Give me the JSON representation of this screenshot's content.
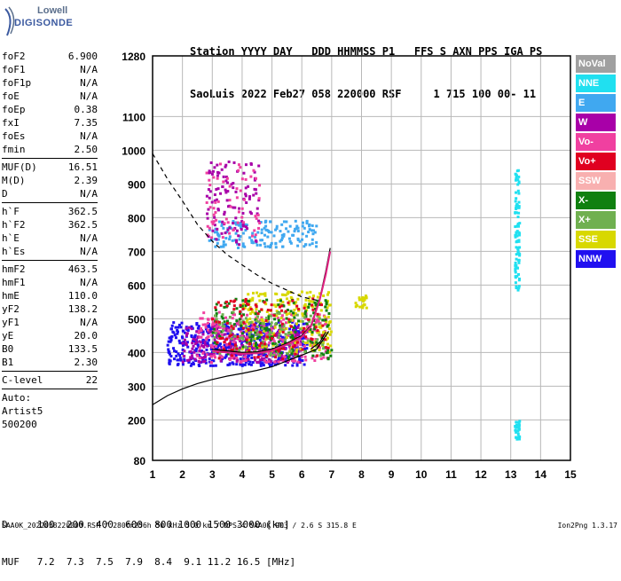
{
  "logo": {
    "line1": "Lowell",
    "line2": "DIGISONDE"
  },
  "header": {
    "line1": "Station YYYY DAY   DDD HHMMSS P1   FFS S AXN PPS IGA PS",
    "line2": "SaoLuis 2022 Feb27 058 220000 RSF     1 715 100 00- 11"
  },
  "params": [
    {
      "k": "foF2",
      "v": "6.900"
    },
    {
      "k": "foF1",
      "v": "N/A"
    },
    {
      "k": "foF1p",
      "v": "N/A"
    },
    {
      "k": "foE",
      "v": "N/A"
    },
    {
      "k": "foEp",
      "v": "0.38"
    },
    {
      "k": "fxI",
      "v": "7.35"
    },
    {
      "k": "foEs",
      "v": "N/A"
    },
    {
      "k": "fmin",
      "v": "2.50"
    },
    {
      "sep": true
    },
    {
      "k": "MUF(D)",
      "v": "16.51"
    },
    {
      "k": "M(D)",
      "v": "2.39"
    },
    {
      "k": "D",
      "v": "N/A"
    },
    {
      "sep": true
    },
    {
      "k": "h`F",
      "v": "362.5"
    },
    {
      "k": "h`F2",
      "v": "362.5"
    },
    {
      "k": "h`E",
      "v": "N/A"
    },
    {
      "k": "h`Es",
      "v": "N/A"
    },
    {
      "sep": true
    },
    {
      "k": "hmF2",
      "v": "463.5"
    },
    {
      "k": "hmF1",
      "v": "N/A"
    },
    {
      "k": "hmE",
      "v": "110.0"
    },
    {
      "k": "yF2",
      "v": "138.2"
    },
    {
      "k": "yF1",
      "v": "N/A"
    },
    {
      "k": "yE",
      "v": "20.0"
    },
    {
      "k": "B0",
      "v": "133.5"
    },
    {
      "k": "B1",
      "v": "2.30"
    },
    {
      "sep": true
    },
    {
      "k": "C-level",
      "v": "22"
    },
    {
      "sep": true
    },
    {
      "plain": "Auto:"
    },
    {
      "plain": "Artist5"
    },
    {
      "plain": "500200"
    }
  ],
  "legend": [
    {
      "label": "NoVal",
      "color": "#a0a0a0"
    },
    {
      "label": "NNE",
      "color": "#20e0f0"
    },
    {
      "label": "E",
      "color": "#40a8f0"
    },
    {
      "label": "W",
      "color": "#a800a8"
    },
    {
      "label": "Vo-",
      "color": "#f040a0"
    },
    {
      "label": "Vo+",
      "color": "#e00020"
    },
    {
      "label": "SSW",
      "color": "#f8b0b0"
    },
    {
      "label": "X-",
      "color": "#108010"
    },
    {
      "label": "X+",
      "color": "#70b050"
    },
    {
      "label": "SSE",
      "color": "#d8d800"
    },
    {
      "label": "NNW",
      "color": "#2010f0"
    }
  ],
  "bottom": {
    "line1": "D     100  200  400  600  800 1000 1500 3000 [km]",
    "line2": "MUF   7.2  7.3  7.5  7.9  8.4  9.1 11.2 16.5 [MHz]"
  },
  "footer": {
    "left": "SAA0K_2022058220000.RSF / 280fx256h 50 kHz 5.0 km / DPS-4 SAA0K 903 / 2.6 S 315.8 E",
    "right": "Ion2Png 1.3.17"
  },
  "chart_data": {
    "type": "scatter",
    "xlim": [
      1,
      15
    ],
    "ylim": [
      80,
      1280
    ],
    "x_ticks": [
      1,
      2,
      3,
      4,
      5,
      6,
      7,
      8,
      9,
      10,
      11,
      12,
      13,
      14,
      15
    ],
    "y_ticks": [
      80,
      200,
      300,
      400,
      500,
      600,
      700,
      800,
      900,
      1000,
      1100,
      1280
    ],
    "grid": true,
    "curves": [
      {
        "name": "profile",
        "style": "solid",
        "color": "#000000",
        "points": [
          [
            1.0,
            245
          ],
          [
            1.5,
            272
          ],
          [
            2.0,
            292
          ],
          [
            2.5,
            308
          ],
          [
            3.0,
            320
          ],
          [
            3.5,
            330
          ],
          [
            4.0,
            338
          ],
          [
            4.5,
            347
          ],
          [
            5.0,
            358
          ],
          [
            5.5,
            375
          ],
          [
            6.0,
            392
          ],
          [
            6.5,
            410
          ],
          [
            6.9,
            463
          ]
        ]
      },
      {
        "name": "upper-trace",
        "style": "dashed",
        "color": "#000000",
        "points": [
          [
            1.0,
            990
          ],
          [
            1.5,
            915
          ],
          [
            2.0,
            850
          ],
          [
            2.5,
            780
          ],
          [
            3.0,
            730
          ],
          [
            3.5,
            690
          ],
          [
            4.0,
            660
          ],
          [
            4.5,
            630
          ],
          [
            5.0,
            605
          ],
          [
            5.5,
            585
          ],
          [
            6.0,
            565
          ],
          [
            6.5,
            555
          ]
        ]
      },
      {
        "name": "o-trace",
        "style": "solid",
        "color": "#000000",
        "points": [
          [
            3.0,
            410
          ],
          [
            3.5,
            405
          ],
          [
            4.0,
            400
          ],
          [
            4.5,
            402
          ],
          [
            5.0,
            410
          ],
          [
            5.5,
            428
          ],
          [
            6.0,
            450
          ],
          [
            6.3,
            480
          ],
          [
            6.6,
            560
          ],
          [
            6.8,
            640
          ],
          [
            6.95,
            710
          ]
        ]
      },
      {
        "name": "o-trace-model",
        "style": "solid",
        "color": "#e02080",
        "points": [
          [
            3.0,
            405
          ],
          [
            3.5,
            400
          ],
          [
            4.0,
            396
          ],
          [
            4.5,
            398
          ],
          [
            5.0,
            406
          ],
          [
            5.5,
            424
          ],
          [
            6.0,
            446
          ],
          [
            6.3,
            476
          ],
          [
            6.6,
            556
          ],
          [
            6.8,
            630
          ],
          [
            6.95,
            700
          ]
        ]
      },
      {
        "name": "x-trace",
        "style": "solid",
        "color": "#000000",
        "points": [
          [
            6.3,
            410
          ],
          [
            6.6,
            430
          ],
          [
            6.8,
            460
          ]
        ]
      }
    ],
    "echo_clusters": [
      {
        "color": "#2010f0",
        "x": [
          1.5,
          6.2
        ],
        "y": [
          360,
          490
        ],
        "n": 520
      },
      {
        "color": "#a800a8",
        "x": [
          2.0,
          6.0
        ],
        "y": [
          370,
          480
        ],
        "n": 240
      },
      {
        "color": "#f040a0",
        "x": [
          2.5,
          6.9
        ],
        "y": [
          370,
          520
        ],
        "n": 260
      },
      {
        "color": "#d8d800",
        "x": [
          4.0,
          7.0
        ],
        "y": [
          400,
          580
        ],
        "n": 220
      },
      {
        "color": "#108010",
        "x": [
          3.0,
          7.0
        ],
        "y": [
          380,
          560
        ],
        "n": 160
      },
      {
        "color": "#70b050",
        "x": [
          3.0,
          6.8
        ],
        "y": [
          390,
          520
        ],
        "n": 120
      },
      {
        "color": "#e00020",
        "x": [
          3.0,
          6.9
        ],
        "y": [
          380,
          560
        ],
        "n": 120
      },
      {
        "color": "#40a8f0",
        "x": [
          2.9,
          6.5
        ],
        "y": [
          710,
          790
        ],
        "n": 160
      },
      {
        "color": "#a800a8",
        "x": [
          2.8,
          4.6
        ],
        "y": [
          720,
          970
        ],
        "n": 110
      },
      {
        "color": "#f040a0",
        "x": [
          2.8,
          4.6
        ],
        "y": [
          740,
          960
        ],
        "n": 60
      },
      {
        "color": "#d8d800",
        "x": [
          7.8,
          8.2
        ],
        "y": [
          530,
          570
        ],
        "n": 25
      },
      {
        "color": "#20e0f0",
        "x": [
          13.15,
          13.3
        ],
        "y": [
          580,
          940
        ],
        "n": 90
      },
      {
        "color": "#20e0f0",
        "x": [
          13.15,
          13.3
        ],
        "y": [
          140,
          200
        ],
        "n": 30
      }
    ]
  }
}
